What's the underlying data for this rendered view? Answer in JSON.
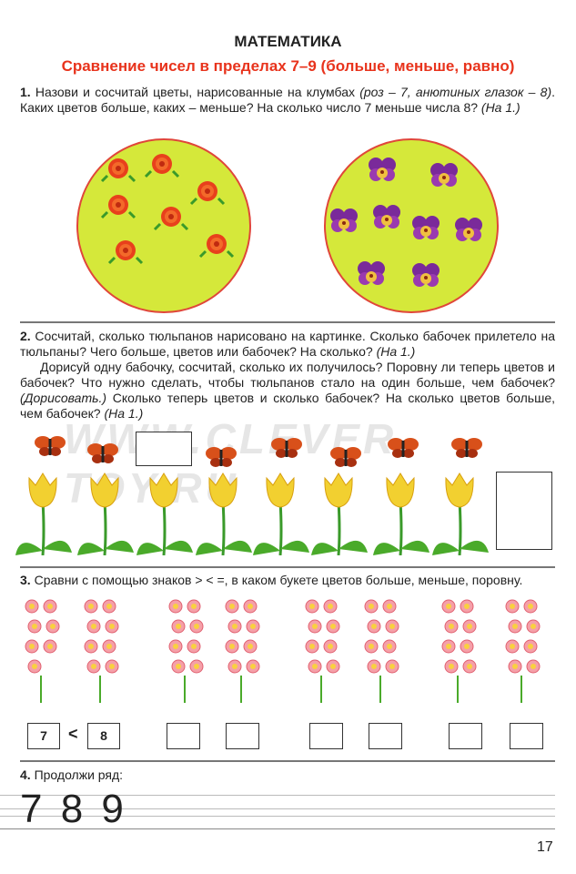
{
  "header": {
    "title": "МАТЕМАТИКА",
    "subtitle": "Сравнение чисел в пределах 7–9 (больше, меньше, равно)"
  },
  "task1": {
    "num": "1.",
    "text1": " Назови и сосчитай цветы, нарисованные на клумбах ",
    "italic1": "(роз – 7, анютиных глазок – 8)",
    "text2": ". Каких цветов больше, каких – меньше? На сколько число 7 меньше числа 8? ",
    "italic2": "(На 1.)",
    "roses": 7,
    "pansies": 8
  },
  "task2": {
    "num": "2.",
    "text1": " Сосчитай, сколько тюльпанов нарисовано на картинке. Сколько бабочек прилетело на тюльпаны? Чего больше, цветов или бабочек? На сколько? ",
    "italic1": "(На 1.)",
    "text2": "Дорисуй одну бабочку, сосчитай, сколько их получилось? Поровну ли теперь цветов и бабочек? Что нужно сделать, чтобы тюльпанов стало на один больше, чем бабочек? ",
    "italic2": "(Дорисовать.)",
    "text3": " Сколько теперь цветов и сколько бабочек? На сколько цветов больше, чем бабочек? ",
    "italic3": "(На 1.)",
    "tulips": 8,
    "butterflies": 7
  },
  "task3": {
    "num": "3.",
    "text": " Сравни с помощью знаков  > < =, в каком букете цветов больше, меньше, поровну.",
    "pair1": {
      "left": "7",
      "sign": "<",
      "right": "8"
    }
  },
  "task4": {
    "num": "4.",
    "text": " Продолжи ряд:",
    "sequence": "7 8 9"
  },
  "watermark": "WWW.CLEVER-TOY.RU",
  "page_number": "17",
  "colors": {
    "accent": "#e8331c",
    "bed": "#d5e83a",
    "bed_border": "#e0463a"
  }
}
